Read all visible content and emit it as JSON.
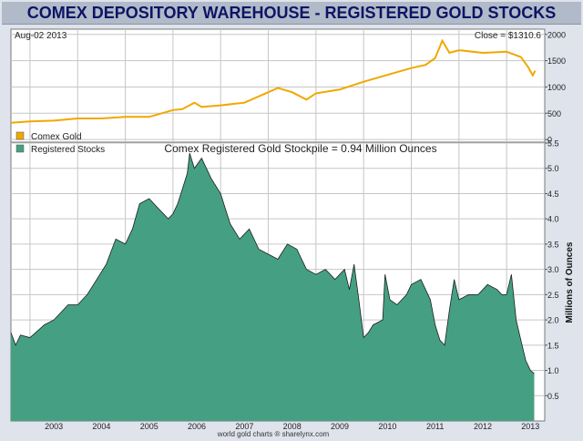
{
  "title": "COMEX DEPOSITORY WAREHOUSE - REGISTERED GOLD STOCKS",
  "top_panel": {
    "date_label": "Aug-02 2013",
    "close_label": "Close = $1310.6",
    "legend": "Comex Gold"
  },
  "bottom_panel": {
    "legend": "Registered Stocks",
    "headline": "Comex Registered Gold Stockpile = 0.94 Million Ounces",
    "ylabel": "Millions of Ounces"
  },
  "footer": "world gold charts ® sharelynx.com",
  "colors": {
    "gold_line": "#f0a800",
    "stocks_fill": "#45a083",
    "stocks_line": "#1e1e1e",
    "plot_bg": "#ffffff"
  },
  "chart_data": [
    {
      "type": "line",
      "title": "Comex Gold",
      "ylim": [
        -50,
        2100
      ],
      "yticks": [
        0,
        500,
        1000,
        1500,
        2000
      ],
      "x": [
        2002.6,
        2003.0,
        2003.5,
        2004.0,
        2004.5,
        2005.0,
        2005.5,
        2006.0,
        2006.2,
        2006.45,
        2006.6,
        2007.0,
        2007.5,
        2008.0,
        2008.2,
        2008.5,
        2008.8,
        2009.0,
        2009.5,
        2010.0,
        2010.5,
        2011.0,
        2011.3,
        2011.5,
        2011.65,
        2011.8,
        2012.0,
        2012.5,
        2013.0,
        2013.3,
        2013.45,
        2013.55,
        2013.6
      ],
      "values": [
        320,
        345,
        360,
        400,
        400,
        430,
        430,
        560,
        580,
        700,
        620,
        650,
        700,
        900,
        980,
        900,
        760,
        880,
        950,
        1100,
        1230,
        1360,
        1420,
        1550,
        1880,
        1650,
        1700,
        1650,
        1670,
        1570,
        1380,
        1220,
        1310
      ]
    },
    {
      "type": "area",
      "title": "Registered Stocks",
      "ylabel": "Millions of Ounces",
      "ylim": [
        0,
        5.5
      ],
      "yticks": [
        0.5,
        1.0,
        1.5,
        2.0,
        2.5,
        3.0,
        3.5,
        4.0,
        4.5,
        5.0,
        5.5
      ],
      "xlim": [
        2002.6,
        2013.8
      ],
      "xticks": [
        "2003",
        "2004",
        "2005",
        "2006",
        "2007",
        "2008",
        "2009",
        "2010",
        "2011",
        "2012",
        "2013"
      ],
      "x": [
        2002.6,
        2002.7,
        2002.8,
        2003.0,
        2003.3,
        2003.5,
        2003.8,
        2004.0,
        2004.2,
        2004.4,
        2004.6,
        2004.8,
        2005.0,
        2005.15,
        2005.3,
        2005.5,
        2005.7,
        2005.9,
        2006.0,
        2006.1,
        2006.2,
        2006.3,
        2006.35,
        2006.45,
        2006.6,
        2006.8,
        2007.0,
        2007.1,
        2007.2,
        2007.4,
        2007.6,
        2007.8,
        2008.0,
        2008.2,
        2008.4,
        2008.6,
        2008.8,
        2009.0,
        2009.2,
        2009.4,
        2009.6,
        2009.7,
        2009.8,
        2009.9,
        2010.0,
        2010.1,
        2010.2,
        2010.4,
        2010.45,
        2010.55,
        2010.7,
        2010.9,
        2011.0,
        2011.2,
        2011.4,
        2011.5,
        2011.6,
        2011.7,
        2011.8,
        2011.9,
        2012.0,
        2012.2,
        2012.4,
        2012.6,
        2012.8,
        2012.9,
        2013.0,
        2013.1,
        2013.2,
        2013.3,
        2013.4,
        2013.5,
        2013.58
      ],
      "values": [
        1.75,
        1.5,
        1.7,
        1.65,
        1.9,
        2.0,
        2.3,
        2.3,
        2.5,
        2.8,
        3.1,
        3.6,
        3.5,
        3.8,
        4.3,
        4.4,
        4.2,
        4.0,
        4.1,
        4.3,
        4.6,
        4.9,
        5.3,
        5.0,
        5.2,
        4.8,
        4.5,
        4.2,
        3.9,
        3.6,
        3.8,
        3.4,
        3.3,
        3.2,
        3.5,
        3.4,
        3.0,
        2.9,
        3.0,
        2.8,
        3.0,
        2.6,
        3.1,
        2.4,
        1.65,
        1.75,
        1.9,
        2.0,
        2.9,
        2.4,
        2.3,
        2.5,
        2.7,
        2.8,
        2.4,
        1.9,
        1.6,
        1.5,
        2.2,
        2.8,
        2.4,
        2.5,
        2.5,
        2.7,
        2.6,
        2.5,
        2.5,
        2.9,
        2.0,
        1.6,
        1.2,
        1.0,
        0.94
      ]
    }
  ]
}
